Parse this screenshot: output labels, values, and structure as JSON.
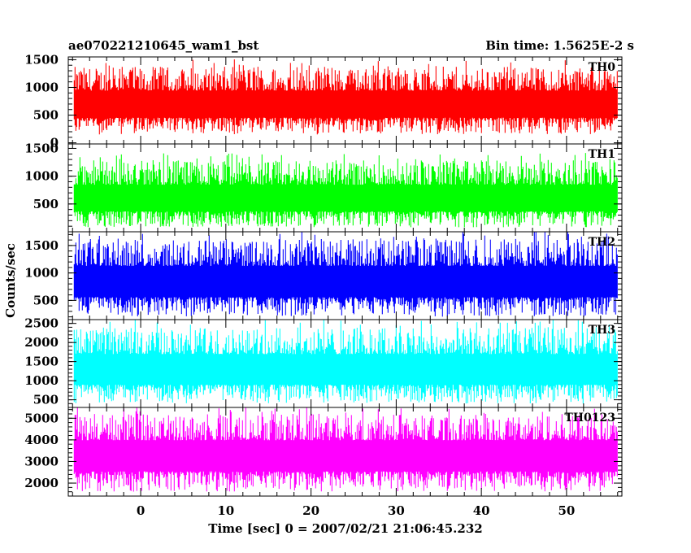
{
  "chart_data": {
    "type": "line",
    "title_left": "ae070221210645_wam1_bst",
    "title_right": "Bin time: 1.5625E-2 s",
    "xlabel": "Time [sec] 0 = 2007/02/21 21:06:45.232",
    "ylabel": "Counts/sec",
    "xlim": [
      -8.5,
      56.5
    ],
    "x_ticks": [
      0,
      10,
      20,
      30,
      40,
      50
    ],
    "grid": false,
    "series": [
      {
        "name": "TH0",
        "color": "#ff0000",
        "x_range": [
          -7.8,
          56.0
        ],
        "ylim": [
          -20,
          1550
        ],
        "y_ticks": [
          0,
          500,
          1000,
          1500
        ],
        "approx_mean": 700,
        "approx_min": 150,
        "approx_max": 1500
      },
      {
        "name": "TH1",
        "color": "#00ff00",
        "x_range": [
          -7.8,
          56.0
        ],
        "ylim": [
          0,
          1580
        ],
        "y_ticks": [
          500,
          1000,
          1500
        ],
        "approx_mean": 600,
        "approx_min": 80,
        "approx_max": 1450
      },
      {
        "name": "TH2",
        "color": "#0000ff",
        "x_range": [
          -7.8,
          56.0
        ],
        "ylim": [
          150,
          1750
        ],
        "y_ticks": [
          500,
          1000,
          1500
        ],
        "approx_mean": 850,
        "approx_min": 200,
        "approx_max": 1750
      },
      {
        "name": "TH3",
        "color": "#00ffff",
        "x_range": [
          -7.8,
          56.0
        ],
        "ylim": [
          300,
          2600
        ],
        "y_ticks": [
          500,
          1000,
          1500,
          2000,
          2500
        ],
        "approx_mean": 1300,
        "approx_min": 400,
        "approx_max": 2600
      },
      {
        "name": "TH0123",
        "color": "#ff00ff",
        "x_range": [
          -7.8,
          56.0
        ],
        "ylim": [
          1400,
          5500
        ],
        "y_ticks": [
          2000,
          3000,
          4000,
          5000
        ],
        "approx_mean": 3300,
        "approx_min": 1600,
        "approx_max": 5400
      }
    ]
  }
}
